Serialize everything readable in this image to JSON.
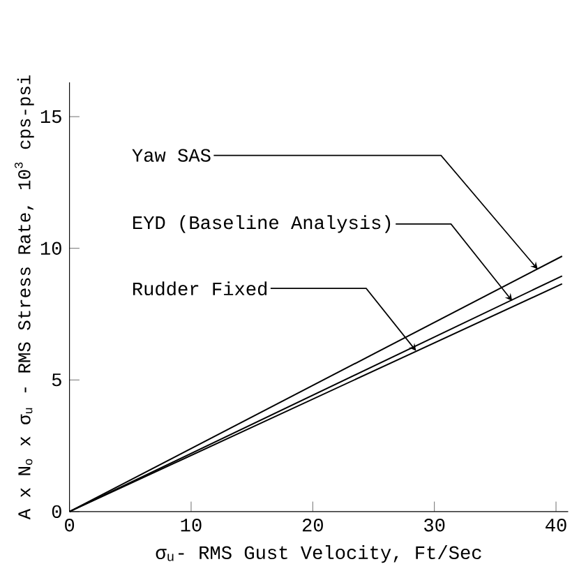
{
  "chart_data": {
    "type": "line",
    "xlabel": "σ$_{u}$- RMS Gust Velocity, Ft/Sec",
    "ylabel": "A x N$_{o}$ x σ$_{u}$ - RMS Stress Rate, 10$^{3}$ cps-psi",
    "xlim": [
      0,
      41
    ],
    "ylim": [
      0,
      16.3
    ],
    "xticks": [
      0,
      10,
      20,
      30,
      40
    ],
    "yticks": [
      0,
      5,
      10,
      15
    ],
    "grid": false,
    "marker": "none",
    "line_style": "solid",
    "x": [
      0,
      40.5
    ],
    "series": [
      {
        "color": "#000000",
        "values": [
          0,
          9.7
        ]
      },
      {
        "color": "#000000",
        "values": [
          0,
          8.95
        ]
      },
      {
        "color": "#000000",
        "values": [
          0,
          8.65
        ]
      }
    ],
    "annotations": [
      {
        "text": "Yaw SAS",
        "x": 38.5,
        "y": 9.2
      },
      {
        "text": "EYD (Baseline Analysis)",
        "x": 36.4,
        "y": 8.0
      },
      {
        "text": "Rudder Fixed",
        "x": 28.5,
        "y": 6.1
      }
    ]
  }
}
